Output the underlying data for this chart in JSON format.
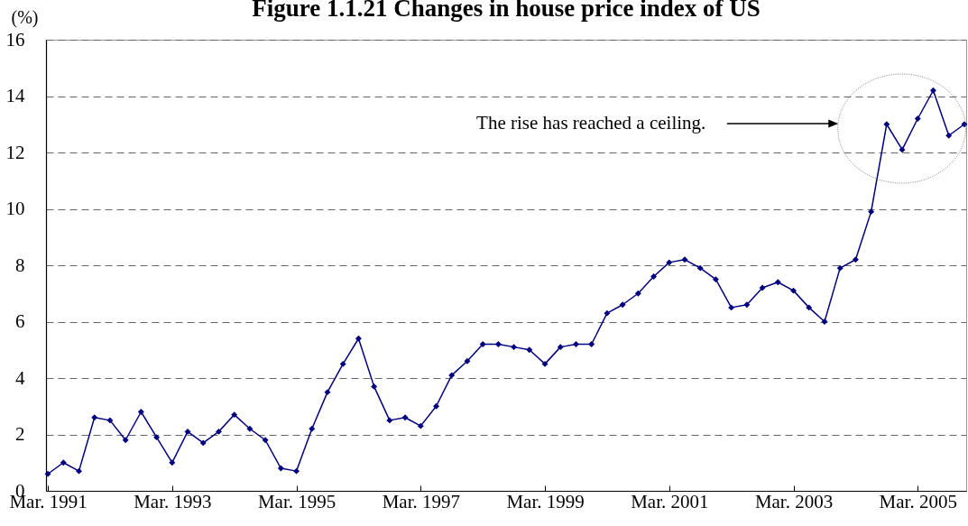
{
  "chart_data": {
    "type": "line",
    "title": "Figure 1.1.21  Changes in house price index of US",
    "ylabel": "(%)",
    "categories": [
      "Mar. 1991",
      null,
      null,
      null,
      null,
      null,
      null,
      null,
      "Mar. 1993",
      null,
      null,
      null,
      null,
      null,
      null,
      null,
      "Mar. 1995",
      null,
      null,
      null,
      null,
      null,
      null,
      null,
      "Mar. 1997",
      null,
      null,
      null,
      null,
      null,
      null,
      null,
      "Mar. 1999",
      null,
      null,
      null,
      null,
      null,
      null,
      null,
      "Mar. 2001",
      null,
      null,
      null,
      null,
      null,
      null,
      null,
      "Mar. 2003",
      null,
      null,
      null,
      null,
      null,
      null,
      null,
      "Mar. 2005",
      null,
      null,
      null
    ],
    "values": [
      0.6,
      1.0,
      0.7,
      2.6,
      2.5,
      1.8,
      2.8,
      1.9,
      1.0,
      2.1,
      1.7,
      2.1,
      2.7,
      2.2,
      1.8,
      0.8,
      0.7,
      2.2,
      3.5,
      4.5,
      5.4,
      3.7,
      2.5,
      2.6,
      2.3,
      3.0,
      4.1,
      4.6,
      5.2,
      5.2,
      5.1,
      5.0,
      4.5,
      5.1,
      5.2,
      5.2,
      6.3,
      6.6,
      7.0,
      7.6,
      8.1,
      8.2,
      7.9,
      7.5,
      6.5,
      6.6,
      7.2,
      7.4,
      7.1,
      6.5,
      6.0,
      7.9,
      8.2,
      9.9,
      13.0,
      12.1,
      13.2,
      14.2,
      12.6,
      13.0
    ],
    "color": "#000080",
    "ylim": [
      0,
      16
    ],
    "yticks": [
      0,
      2,
      4,
      6,
      8,
      10,
      12,
      14,
      16
    ],
    "grid": "y",
    "marker": "diamond",
    "line_style": "solid",
    "annotations": [
      "The rise has reached a ceiling."
    ]
  }
}
